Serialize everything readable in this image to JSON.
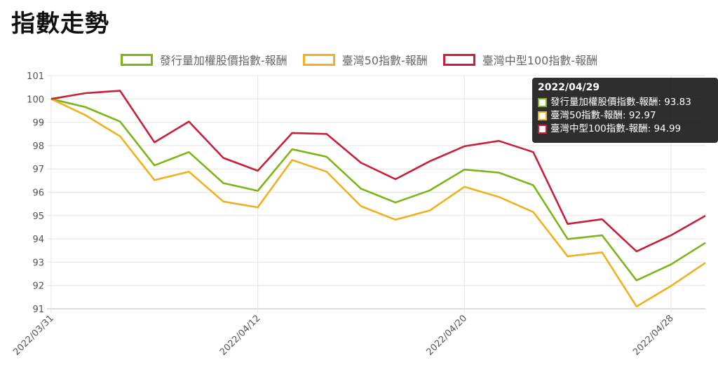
{
  "page_title": "指數走勢",
  "colors": {
    "green": "#7cb518",
    "orange": "#f0b11e",
    "red": "#c8203a"
  },
  "tooltip": {
    "title": "2022/04/29",
    "rows": [
      {
        "label": "發行量加權股價指數-報酬: 93.83",
        "color": "#7cb518"
      },
      {
        "label": "臺灣50指數-報酬: 92.97",
        "color": "#f0b11e"
      },
      {
        "label": "臺灣中型100指數-報酬: 94.99",
        "color": "#c8203a"
      }
    ]
  },
  "chart_data": {
    "type": "line",
    "x": [
      "2022/03/31",
      "2022/04/01",
      "2022/04/06",
      "2022/04/07",
      "2022/04/08",
      "2022/04/11",
      "2022/04/12",
      "2022/04/13",
      "2022/04/14",
      "2022/04/15",
      "2022/04/18",
      "2022/04/19",
      "2022/04/20",
      "2022/04/21",
      "2022/04/22",
      "2022/04/25",
      "2022/04/26",
      "2022/04/27",
      "2022/04/28",
      "2022/04/29"
    ],
    "xticks": [
      "2022/03/31",
      "2022/04/12",
      "2022/04/20",
      "2022/04/28"
    ],
    "ylim": [
      91,
      101
    ],
    "yticks": [
      91,
      92,
      93,
      94,
      95,
      96,
      97,
      98,
      99,
      100,
      101
    ],
    "grid": true,
    "legend": "top-center",
    "series": [
      {
        "name": "發行量加權股價指數-報酬",
        "color": "#7cb518",
        "values": [
          100,
          99.65,
          99.03,
          97.15,
          97.72,
          96.39,
          96.06,
          97.84,
          97.52,
          96.15,
          95.56,
          96.08,
          96.97,
          96.84,
          96.3,
          93.99,
          94.15,
          92.22,
          92.9,
          93.83
        ]
      },
      {
        "name": "臺灣50指數-報酬",
        "color": "#f0b11e",
        "values": [
          100,
          99.3,
          98.4,
          96.52,
          96.88,
          95.6,
          95.35,
          97.38,
          96.88,
          95.4,
          94.82,
          95.22,
          96.23,
          95.8,
          95.15,
          93.25,
          93.42,
          91.1,
          91.98,
          92.97
        ]
      },
      {
        "name": "臺灣中型100指數-報酬",
        "color": "#c8203a",
        "values": [
          100,
          100.25,
          100.35,
          98.14,
          99.03,
          97.47,
          96.92,
          98.54,
          98.5,
          97.26,
          96.56,
          97.33,
          97.97,
          98.2,
          97.72,
          94.64,
          94.84,
          93.46,
          94.15,
          94.99
        ]
      }
    ]
  }
}
